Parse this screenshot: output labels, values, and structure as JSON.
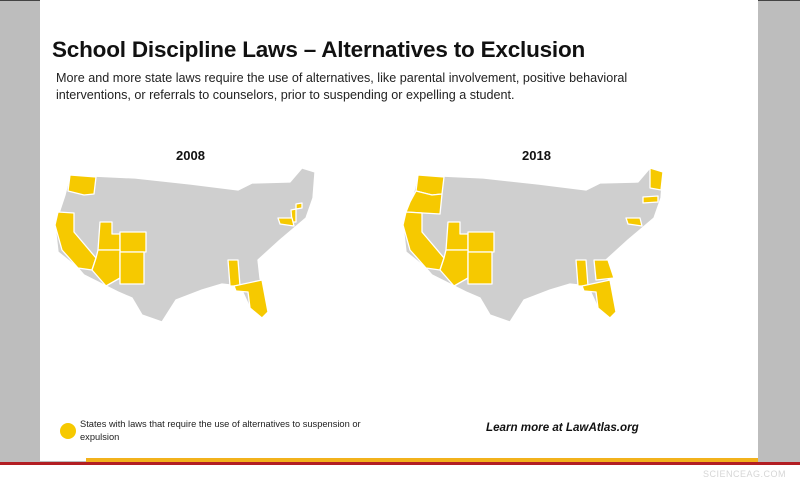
{
  "title": "School Discipline Laws – Alternatives to Exclusion",
  "subtitle": "More and more state laws require the use of alternatives, like parental involvement, positive behavioral interventions, or referrals to counselors, prior to suspending or expelling a student.",
  "colors": {
    "highlight": "#f6c900",
    "other": "#d2d2d2",
    "gold_bar": "#f2b21c",
    "red_line": "#b21e23"
  },
  "maps": [
    {
      "year": "2008",
      "highlighted_states": [
        "WA",
        "CA",
        "UT",
        "CO",
        "AZ",
        "NM",
        "MS",
        "FL",
        "NJ",
        "MD",
        "CT"
      ]
    },
    {
      "year": "2018",
      "highlighted_states": [
        "WA",
        "OR",
        "CA",
        "UT",
        "CO",
        "AZ",
        "NM",
        "MS",
        "GA",
        "FL",
        "MD",
        "MA",
        "ME"
      ]
    }
  ],
  "legend": {
    "label": "States with laws that require the use of alternatives to suspension or expulsion"
  },
  "learn_more": "Learn more at LawAtlas.org",
  "watermark": "SCIENCEAG.COM"
}
